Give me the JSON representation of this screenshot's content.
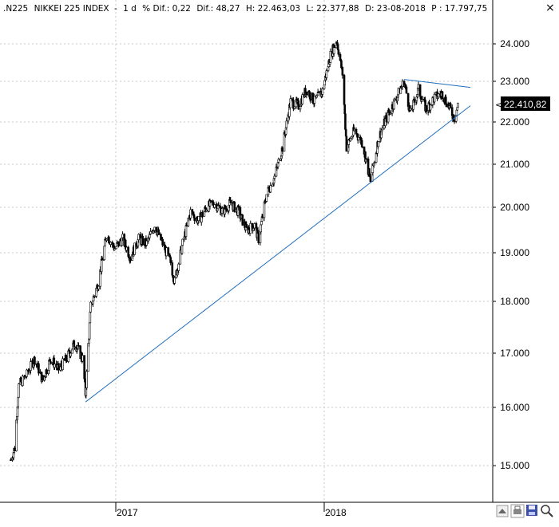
{
  "header": {
    "symbol": ".N225",
    "name": "NIKKEI 225 INDEX",
    "timeframe": "1 d",
    "pct_change": "% Dif.: 0,22",
    "change": "Dif.: 48,27",
    "high": "H: 22.463,03",
    "low": "L: 22.377,88",
    "date": "D: 23-08-2018",
    "p_value": "P : 17.797,75"
  },
  "toolbar": {
    "close_glyph": "×",
    "icons": [
      "scroll-up-icon",
      "printer-icon",
      "save-icon",
      "zoom-icon"
    ]
  },
  "colors": {
    "grid": "#c8c8c8",
    "candle": "#000000",
    "trendline": "#1f6fbf",
    "badge": "#000000"
  },
  "chart_data": {
    "type": "candlestick",
    "title": "",
    "xlabel": "",
    "ylabel": "",
    "x_tick_labels": [
      "2017",
      "2018"
    ],
    "ylim": [
      14600,
      24600
    ],
    "y_ticks": [
      15000,
      16000,
      17000,
      18000,
      19000,
      20000,
      21000,
      22000,
      23000,
      24000
    ],
    "y_tick_labels": [
      "15.000",
      "16.000",
      "17.000",
      "18.000",
      "19.000",
      "20.000",
      "21.000",
      "22.000",
      "23.000",
      "24.000"
    ],
    "last_value": 22410.82,
    "last_value_label": "22.410,82",
    "grid": true,
    "legend": "none",
    "close_path": [
      [
        "2016-07-01",
        15100
      ],
      [
        "2016-07-08",
        15300
      ],
      [
        "2016-07-15",
        16400
      ],
      [
        "2016-07-29",
        16600
      ],
      [
        "2016-08-12",
        16900
      ],
      [
        "2016-08-26",
        16500
      ],
      [
        "2016-09-09",
        16900
      ],
      [
        "2016-09-23",
        16700
      ],
      [
        "2016-10-07",
        16900
      ],
      [
        "2016-10-21",
        17200
      ],
      [
        "2016-11-04",
        16900
      ],
      [
        "2016-11-09",
        16250
      ],
      [
        "2016-11-18",
        17900
      ],
      [
        "2016-12-02",
        18400
      ],
      [
        "2016-12-16",
        19400
      ],
      [
        "2016-12-30",
        19100
      ],
      [
        "2017-01-13",
        19300
      ],
      [
        "2017-01-27",
        18900
      ],
      [
        "2017-02-10",
        19300
      ],
      [
        "2017-02-24",
        19200
      ],
      [
        "2017-03-10",
        19600
      ],
      [
        "2017-03-24",
        19200
      ],
      [
        "2017-04-07",
        18800
      ],
      [
        "2017-04-14",
        18400
      ],
      [
        "2017-04-28",
        19200
      ],
      [
        "2017-05-12",
        19900
      ],
      [
        "2017-05-26",
        19700
      ],
      [
        "2017-06-09",
        20000
      ],
      [
        "2017-06-23",
        20100
      ],
      [
        "2017-07-07",
        19900
      ],
      [
        "2017-07-21",
        20100
      ],
      [
        "2017-08-04",
        19900
      ],
      [
        "2017-08-18",
        19500
      ],
      [
        "2017-09-01",
        19600
      ],
      [
        "2017-09-08",
        19300
      ],
      [
        "2017-09-22",
        20300
      ],
      [
        "2017-10-06",
        20700
      ],
      [
        "2017-10-20",
        21400
      ],
      [
        "2017-11-03",
        22500
      ],
      [
        "2017-11-17",
        22400
      ],
      [
        "2017-12-01",
        22800
      ],
      [
        "2017-12-15",
        22500
      ],
      [
        "2017-12-29",
        22760
      ],
      [
        "2018-01-12",
        23700
      ],
      [
        "2018-01-23",
        24100
      ],
      [
        "2018-02-02",
        23200
      ],
      [
        "2018-02-09",
        21400
      ],
      [
        "2018-02-23",
        21800
      ],
      [
        "2018-03-09",
        21500
      ],
      [
        "2018-03-23",
        20600
      ],
      [
        "2018-04-06",
        21600
      ],
      [
        "2018-04-20",
        22100
      ],
      [
        "2018-05-04",
        22500
      ],
      [
        "2018-05-21",
        23000
      ],
      [
        "2018-06-01",
        22200
      ],
      [
        "2018-06-15",
        22800
      ],
      [
        "2018-06-29",
        22300
      ],
      [
        "2018-07-13",
        22600
      ],
      [
        "2018-07-27",
        22700
      ],
      [
        "2018-08-10",
        22300
      ],
      [
        "2018-08-17",
        22100
      ],
      [
        "2018-08-23",
        22410
      ]
    ],
    "trendlines": [
      {
        "start": [
          "2016-11-09",
          16100
        ],
        "end": [
          "2018-09-14",
          22400
        ]
      },
      {
        "start": [
          "2018-05-21",
          23050
        ],
        "end": [
          "2018-09-14",
          22850
        ]
      }
    ]
  }
}
